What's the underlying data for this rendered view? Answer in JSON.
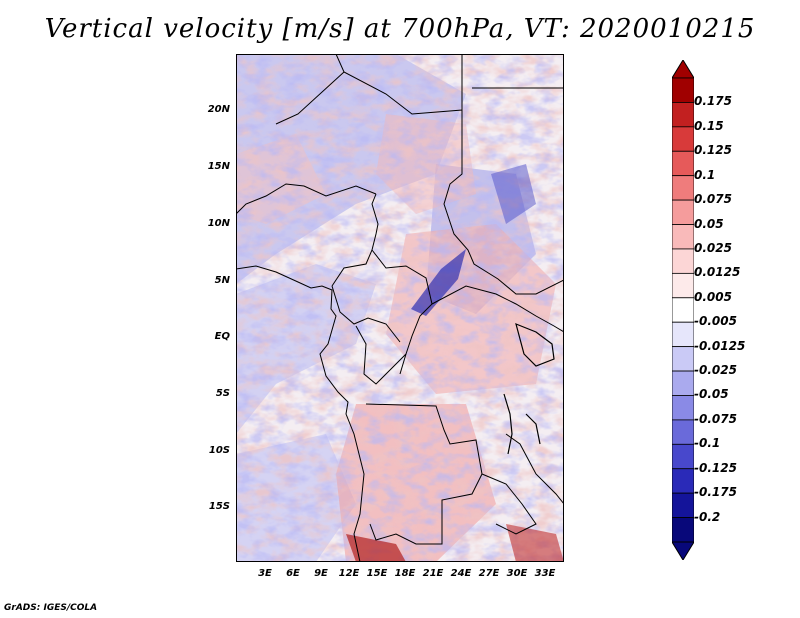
{
  "title": "Vertical velocity [m/s] at 700hPa, VT: 2020010215",
  "credit": "GrADS: IGES/COLA",
  "y_axis_labels": [
    "20N",
    "15N",
    "10N",
    "5N",
    "EQ",
    "5S",
    "10S",
    "15S"
  ],
  "x_axis_labels": [
    "3E",
    "6E",
    "9E",
    "12E",
    "15E",
    "18E",
    "21E",
    "24E",
    "27E",
    "30E",
    "33E"
  ],
  "colorbar": {
    "labels": [
      "0.175",
      "0.15",
      "0.125",
      "0.1",
      "0.075",
      "0.05",
      "0.025",
      "0.0125",
      "0.005",
      "-0.005",
      "-0.0125",
      "-0.025",
      "-0.05",
      "-0.075",
      "-0.1",
      "-0.125",
      "-0.175",
      "-0.2"
    ],
    "colors": [
      "#a00000",
      "#c22020",
      "#d83a3a",
      "#e65a5a",
      "#ef7c7c",
      "#f59c9c",
      "#f9baba",
      "#fcd6d6",
      "#fdeaea",
      "#ffffff",
      "#e6e6fb",
      "#cacaf6",
      "#aaaaee",
      "#8a8ae6",
      "#6a6ada",
      "#4848cc",
      "#2a2ab8",
      "#14149a",
      "#08087a"
    ]
  }
}
